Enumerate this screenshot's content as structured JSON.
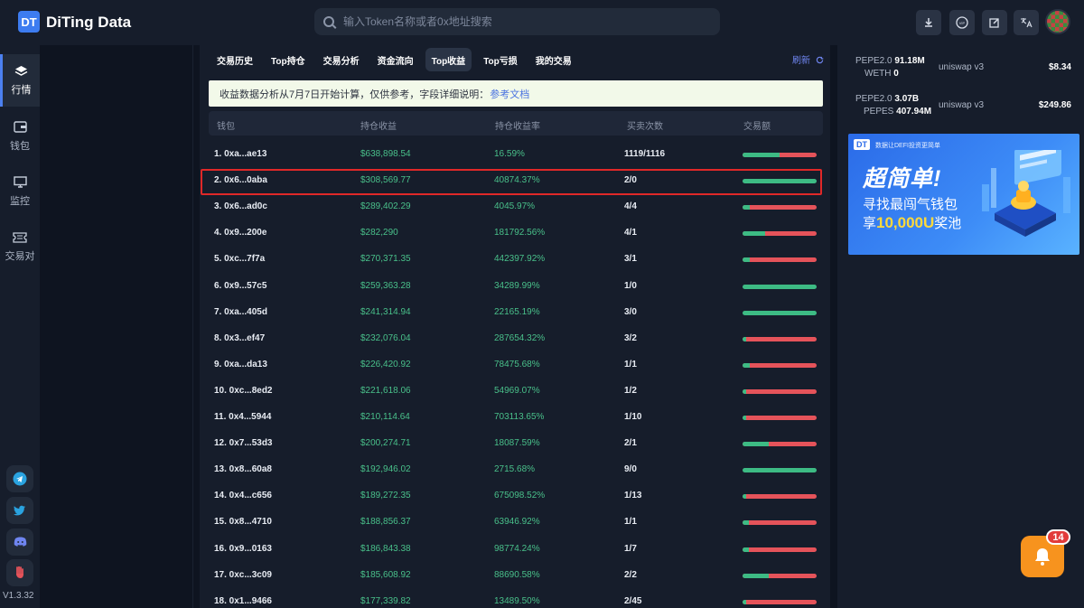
{
  "header": {
    "logo_text": "DT",
    "brand": "DiTing Data",
    "search_placeholder": "输入Token名称或者0x地址搜索"
  },
  "sidebar": {
    "items": [
      {
        "label": "行情",
        "icon": "layers-icon"
      },
      {
        "label": "钱包",
        "icon": "wallet-icon"
      },
      {
        "label": "监控",
        "icon": "monitor-icon"
      },
      {
        "label": "交易对",
        "icon": "ticket-icon"
      }
    ],
    "socials": [
      "telegram-icon",
      "twitter-icon",
      "discord-icon",
      "wechat-icon"
    ],
    "version": "V1.3.32"
  },
  "tabs": [
    {
      "label": "交易历史",
      "active": false
    },
    {
      "label": "Top持仓",
      "active": false
    },
    {
      "label": "交易分析",
      "active": false
    },
    {
      "label": "资金流向",
      "active": false
    },
    {
      "label": "Top收益",
      "active": true
    },
    {
      "label": "Top亏损",
      "active": false
    },
    {
      "label": "我的交易",
      "active": false
    }
  ],
  "refresh_label": "刷新",
  "notice": {
    "text": "收益数据分析从7月7日开始计算，仅供参考，字段详细说明：",
    "link": "参考文档"
  },
  "table": {
    "headers": [
      "钱包",
      "持仓收益",
      "持仓收益率",
      "买卖次数",
      "交易额"
    ],
    "rows": [
      {
        "wallet": "1. 0xa...ae13",
        "profit": "$638,898.54",
        "rate": "16.59%",
        "count": "1119/1116",
        "buy_ratio": 0.5
      },
      {
        "wallet": "2. 0x6...0aba",
        "profit": "$308,569.77",
        "rate": "40874.37%",
        "count": "2/0",
        "buy_ratio": 1.0
      },
      {
        "wallet": "3. 0x6...ad0c",
        "profit": "$289,402.29",
        "rate": "4045.97%",
        "count": "4/4",
        "buy_ratio": 0.1
      },
      {
        "wallet": "4. 0x9...200e",
        "profit": "$282,290",
        "rate": "181792.56%",
        "count": "4/1",
        "buy_ratio": 0.3
      },
      {
        "wallet": "5. 0xc...7f7a",
        "profit": "$270,371.35",
        "rate": "442397.92%",
        "count": "3/1",
        "buy_ratio": 0.1
      },
      {
        "wallet": "6. 0x9...57c5",
        "profit": "$259,363.28",
        "rate": "34289.99%",
        "count": "1/0",
        "buy_ratio": 1.0
      },
      {
        "wallet": "7. 0xa...405d",
        "profit": "$241,314.94",
        "rate": "22165.19%",
        "count": "3/0",
        "buy_ratio": 1.0
      },
      {
        "wallet": "8. 0x3...ef47",
        "profit": "$232,076.04",
        "rate": "287654.32%",
        "count": "3/2",
        "buy_ratio": 0.05
      },
      {
        "wallet": "9. 0xa...da13",
        "profit": "$226,420.92",
        "rate": "78475.68%",
        "count": "1/1",
        "buy_ratio": 0.1
      },
      {
        "wallet": "10. 0xc...8ed2",
        "profit": "$221,618.06",
        "rate": "54969.07%",
        "count": "1/2",
        "buy_ratio": 0.05
      },
      {
        "wallet": "11. 0x4...5944",
        "profit": "$210,114.64",
        "rate": "703113.65%",
        "count": "1/10",
        "buy_ratio": 0.05
      },
      {
        "wallet": "12. 0x7...53d3",
        "profit": "$200,274.71",
        "rate": "18087.59%",
        "count": "2/1",
        "buy_ratio": 0.35
      },
      {
        "wallet": "13. 0x8...60a8",
        "profit": "$192,946.02",
        "rate": "2715.68%",
        "count": "9/0",
        "buy_ratio": 1.0
      },
      {
        "wallet": "14. 0x4...c656",
        "profit": "$189,272.35",
        "rate": "675098.52%",
        "count": "1/13",
        "buy_ratio": 0.05
      },
      {
        "wallet": "15. 0x8...4710",
        "profit": "$188,856.37",
        "rate": "63946.92%",
        "count": "1/1",
        "buy_ratio": 0.08
      },
      {
        "wallet": "16. 0x9...0163",
        "profit": "$186,843.38",
        "rate": "98774.24%",
        "count": "1/7",
        "buy_ratio": 0.08
      },
      {
        "wallet": "17. 0xc...3c09",
        "profit": "$185,608.92",
        "rate": "88690.58%",
        "count": "2/2",
        "buy_ratio": 0.35
      },
      {
        "wallet": "18. 0x1...9466",
        "profit": "$177,339.82",
        "rate": "13489.50%",
        "count": "2/45",
        "buy_ratio": 0.05
      }
    ]
  },
  "pools": [
    {
      "token_a": "PEPE2.0",
      "amount_a": "91.18M",
      "token_b": "WETH",
      "amount_b": "0",
      "dex": "uniswap v3",
      "price": "$8.34"
    },
    {
      "token_a": "PEPE2.0",
      "amount_a": "3.07B",
      "token_b": "PEPES",
      "amount_b": "407.94M",
      "dex": "uniswap v3",
      "price": "$249.86"
    }
  ],
  "banner": {
    "logo": "DT",
    "small_text": "数据让DEFI投资更简单",
    "title": "超简单!",
    "line1": "寻找最闯气钱包",
    "line2_prefix": "享",
    "line2_highlight": "10,000U",
    "line2_suffix": "奖池"
  },
  "notification_count": "14",
  "colors": {
    "buy": "#3dbb84",
    "sell": "#e5535a",
    "profit_text": "#49c08a",
    "accent": "#4c80f0",
    "highlight_border": "#e02828"
  }
}
